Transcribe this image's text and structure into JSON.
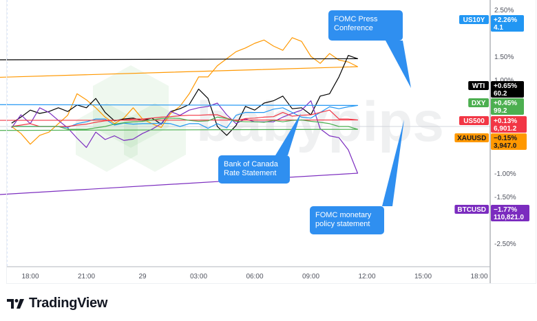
{
  "chart_data": {
    "type": "line",
    "title": "",
    "x": [
      "17:00",
      "17:30",
      "18:00",
      "18:30",
      "19:00",
      "19:30",
      "20:00",
      "20:30",
      "21:00",
      "21:30",
      "22:00",
      "22:30",
      "23:00",
      "23:30",
      "00:00",
      "00:30",
      "01:00",
      "01:30",
      "02:00",
      "02:30",
      "03:00",
      "03:30",
      "04:00",
      "04:30",
      "05:00",
      "05:30",
      "06:00",
      "06:30",
      "07:00",
      "07:30",
      "08:00",
      "08:30",
      "09:00",
      "09:30",
      "10:00",
      "10:30",
      "11:00",
      "11:30",
      "12:00",
      "12:30",
      "13:00",
      "13:30",
      "14:00",
      "14:30",
      "15:00",
      "15:30",
      "16:00"
    ],
    "x_ticks": [
      "18:00",
      "21:00",
      "29",
      "03:00",
      "06:00",
      "09:00",
      "12:00",
      "15:00",
      "18:00"
    ],
    "y_ticks": [
      "2.50%",
      "1.50%",
      "1.00%",
      "-1.00%",
      "-1.50%",
      "-2.50%"
    ],
    "y_tick_values": [
      2.5,
      1.5,
      1.0,
      -1.0,
      -1.5,
      -2.5
    ],
    "yunit": "%",
    "ylim": [
      -3.0,
      2.75
    ],
    "grid": false,
    "zero_line": true,
    "series": [
      {
        "name": "XAUUSD",
        "color": "#ff9800",
        "change": "−0.15%",
        "last": "3,947.0",
        "text_color": "#131722",
        "values": [
          0,
          -0.15,
          -0.38,
          -0.19,
          -0.12,
          0.06,
          0.24,
          0.7,
          0.57,
          0.4,
          0.2,
          0.06,
          0.18,
          0.4,
          0.16,
          0.06,
          -0.02,
          0.28,
          0.43,
          0.7,
          1.06,
          1.06,
          1.3,
          1.45,
          1.6,
          1.68,
          1.78,
          1.85,
          1.72,
          1.63,
          1.9,
          1.82,
          1.5,
          1.35,
          1.56,
          1.42,
          1.38,
          1.28,
          1.0,
          1.16,
          0.98,
          0.87,
          0.8,
          0.03,
          0.43,
          -0.6,
          -0.15
        ]
      },
      {
        "name": "WTI",
        "color": "#000000",
        "change": "+0.65%",
        "last": "60.2",
        "text_color": "#ffffff",
        "values": [
          0.07,
          0.2,
          0.35,
          0.28,
          0.32,
          0.4,
          0.32,
          0.46,
          0.4,
          0.6,
          0.3,
          0.12,
          0.16,
          0.18,
          0.13,
          0.18,
          0.05,
          0.32,
          0.38,
          0.47,
          0.8,
          0.6,
          0.0,
          -0.19,
          0.02,
          0.43,
          0.35,
          0.5,
          0.55,
          0.65,
          0.38,
          0.4,
          0.25,
          0.65,
          0.7,
          1.06,
          1.52,
          1.45,
          1.42,
          1.15,
          1.1,
          1.0,
          0.9,
          0.82,
          0.87,
          0.62,
          0.65
        ]
      },
      {
        "name": "BTCUSD",
        "color": "#7b2cbf",
        "change": "−1.77%",
        "last": "110,821.0",
        "text_color": "#ffffff",
        "values": [
          -0.03,
          0.25,
          0.06,
          0.4,
          0.3,
          0.13,
          -0.03,
          -0.25,
          -0.45,
          -0.12,
          -0.28,
          -0.2,
          -0.3,
          -0.27,
          -0.15,
          -0.06,
          0.06,
          0.32,
          0.24,
          0.35,
          0.4,
          0.43,
          0.5,
          0.25,
          0.06,
          0.16,
          0.1,
          0.1,
          0.1,
          0.2,
          0.28,
          0.35,
          0.55,
          -0.05,
          -0.2,
          -0.24,
          -0.5,
          -1.0,
          -1.56,
          -1.35,
          -1.45,
          -0.97,
          -1.4,
          -2.6,
          -1.33,
          -2.1,
          -1.77
        ]
      },
      {
        "name": "US10Y",
        "color": "#2196f3",
        "change": "+2.26%",
        "last": "4.1",
        "text_color": "#ffffff",
        "values": [
          0,
          0,
          0,
          0,
          0,
          0,
          -0.02,
          0.06,
          0.1,
          0.16,
          0.16,
          0.03,
          0.07,
          0.05,
          0.06,
          0.06,
          0.07,
          0.06,
          0.0,
          0.06,
          0.06,
          -0.04,
          0.06,
          -0.03,
          0.24,
          0.3,
          0.3,
          0.3,
          0.37,
          0.4,
          0.3,
          0.2,
          0.18,
          0.3,
          0.42,
          0.38,
          0.42,
          0.45,
          0.47,
          0.4,
          0.47,
          0.82,
          1.13,
          1.82,
          1.9,
          2.4,
          2.26
        ]
      },
      {
        "name": "US500",
        "color": "#f23645",
        "change": "+0.13%",
        "last": "6,901.2",
        "text_color": "#ffffff",
        "values": [
          0,
          0.03,
          0.06,
          0,
          0,
          0,
          0,
          0.03,
          0.05,
          0.09,
          0.12,
          0.13,
          0.14,
          0.16,
          0.16,
          0.18,
          0.2,
          0.21,
          0.23,
          0.24,
          0.24,
          0.25,
          0.25,
          0.18,
          0.12,
          0.17,
          0.18,
          0.2,
          0.21,
          0.3,
          0.22,
          0.24,
          0.25,
          0.3,
          0.35,
          0.16,
          0.16,
          0.14,
          0.13,
          0.18,
          0.24,
          0.13,
          0.16,
          -0.53,
          -0.16,
          -0.2,
          0.13
        ]
      },
      {
        "name": "DXY",
        "color": "#4caf50",
        "change": "+0.45%",
        "last": "99.2",
        "text_color": "#ffffff",
        "values": [
          0,
          0,
          0,
          0,
          0,
          0,
          -0.06,
          -0.06,
          -0.06,
          -0.03,
          0,
          0.05,
          0.08,
          0.1,
          0.11,
          0.14,
          0.17,
          0.18,
          0.17,
          0.13,
          0.11,
          0.12,
          0.2,
          0.17,
          0.11,
          0.1,
          0.1,
          0.09,
          0.13,
          0.1,
          0.13,
          0.14,
          0.11,
          0.09,
          0.06,
          0,
          0,
          -0.06,
          -0.09,
          -0.05,
          0,
          0.04,
          0.07,
          0.45,
          0.55,
          0.47,
          0.45
        ]
      }
    ],
    "legend_order": [
      "US10Y",
      "WTI",
      "DXY",
      "US500",
      "XAUUSD",
      "BTCUSD"
    ],
    "annotations": [
      {
        "lines": [
          "FOMC Press",
          "Conference"
        ],
        "at": "14:45"
      },
      {
        "lines": [
          "Bank of Canada",
          "Rate Statement"
        ],
        "at": "08:30"
      },
      {
        "lines": [
          "FOMC monetary",
          "policy statement"
        ],
        "at": "14:00"
      }
    ],
    "annotation_color": "#2f8ff0"
  },
  "watermark": "babypips",
  "footer": {
    "brand": "TradingView"
  }
}
